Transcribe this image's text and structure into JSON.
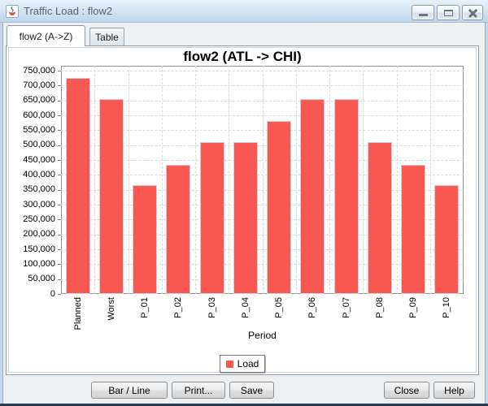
{
  "window": {
    "title": "Traffic Load : flow2",
    "icon": "java-coffee-cup-icon",
    "controls": {
      "minimize": "minimize",
      "maximize": "maximize",
      "close": "close"
    }
  },
  "tabs": [
    {
      "label": "flow2 (A->Z)",
      "active": true
    },
    {
      "label": "Table",
      "active": false
    }
  ],
  "chart_data": {
    "type": "bar",
    "title": "flow2 (ATL -> CHI)",
    "xlabel": "Period",
    "ylabel": "",
    "categories": [
      "Planned",
      "Worst",
      "P_01",
      "P_02",
      "P_03",
      "P_04",
      "P_05",
      "P_06",
      "P_07",
      "P_08",
      "P_09",
      "P_10"
    ],
    "series": [
      {
        "name": "Load",
        "color": "#f95752",
        "values": [
          725000,
          655000,
          365000,
          435000,
          510000,
          510000,
          582000,
          655000,
          655000,
          510000,
          435000,
          365000
        ]
      }
    ],
    "ylim": [
      0,
      750000
    ],
    "ytick_step": 50000,
    "grid": true,
    "legend_position": "bottom"
  },
  "buttons": {
    "left": [
      {
        "label": "Bar / Line"
      },
      {
        "label": "Print..."
      },
      {
        "label": "Save"
      }
    ],
    "right": [
      {
        "label": "Close"
      },
      {
        "label": "Help"
      }
    ]
  },
  "colors": {
    "bar": "#f95752",
    "titlebar": "#cfe0f0",
    "frame": "#c7d7e9",
    "plot_border": "#8c9196",
    "gridline": "#d9d9d9"
  }
}
